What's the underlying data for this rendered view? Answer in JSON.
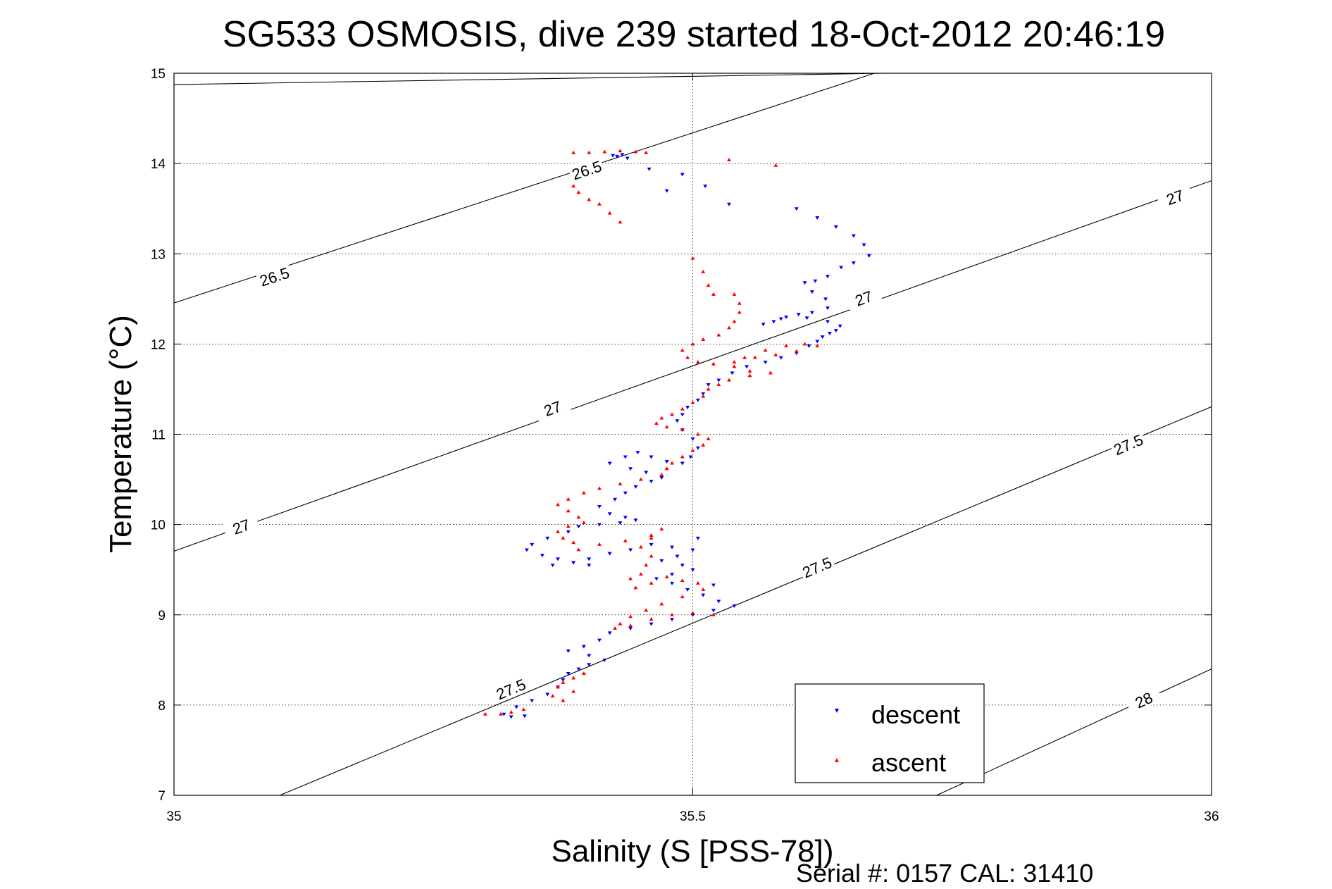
{
  "chart_data": {
    "type": "scatter",
    "title": "SG533 OSMOSIS, dive 239 started 18-Oct-2012 20:46:19",
    "xlabel": "Salinity (S [PSS-78])",
    "ylabel": "Temperature (°C)",
    "footer": "Serial #: 0157  CAL: 31410",
    "xlim": [
      35,
      36
    ],
    "ylim": [
      7,
      15
    ],
    "xticks": [
      "35",
      "35.5",
      "36"
    ],
    "xtick_values": [
      35,
      35.5,
      36
    ],
    "yticks": [
      "7",
      "8",
      "9",
      "10",
      "11",
      "12",
      "13",
      "14",
      "15"
    ],
    "ytick_values": [
      7,
      8,
      9,
      10,
      11,
      12,
      13,
      14,
      15
    ],
    "grid": true,
    "legend_position": "bottom-right",
    "contours": [
      {
        "label": "26.5",
        "line": [
          [
            35.0,
            14.875
          ],
          [
            35.684,
            15.0
          ]
        ],
        "label_positions": []
      },
      {
        "label": "26.5",
        "line": [
          [
            35.0,
            12.455
          ],
          [
            35.675,
            15.0
          ]
        ],
        "label_positions": [
          [
            35.097,
            12.74
          ],
          [
            35.398,
            13.92
          ]
        ]
      },
      {
        "label": "27",
        "line": [
          [
            35.0,
            9.705
          ],
          [
            36.0,
            13.81
          ]
        ],
        "label_positions": [
          [
            35.065,
            9.97
          ],
          [
            35.365,
            11.28
          ],
          [
            35.665,
            12.5
          ],
          [
            35.965,
            13.62
          ]
        ]
      },
      {
        "label": "27.5",
        "line": [
          [
            35.102,
            7.0
          ],
          [
            36.0,
            11.305
          ]
        ],
        "label_positions": [
          [
            35.325,
            8.17
          ],
          [
            35.62,
            9.52
          ],
          [
            35.92,
            10.88
          ]
        ]
      },
      {
        "label": "28",
        "line": [
          [
            35.735,
            7.0
          ],
          [
            36.0,
            8.4
          ]
        ],
        "label_positions": [
          [
            35.935,
            8.05
          ]
        ]
      }
    ],
    "series": [
      {
        "name": "descent",
        "color": "#0000ff",
        "marker": "triangle-down",
        "points": [
          [
            35.423,
            14.09
          ],
          [
            35.427,
            14.08
          ],
          [
            35.432,
            14.1
          ],
          [
            35.437,
            14.06
          ],
          [
            35.458,
            13.94
          ],
          [
            35.49,
            13.88
          ],
          [
            35.512,
            13.75
          ],
          [
            35.475,
            13.7
          ],
          [
            35.535,
            13.55
          ],
          [
            35.6,
            13.5
          ],
          [
            35.62,
            13.4
          ],
          [
            35.638,
            13.3
          ],
          [
            35.655,
            13.2
          ],
          [
            35.665,
            13.1
          ],
          [
            35.67,
            12.98
          ],
          [
            35.655,
            12.9
          ],
          [
            35.643,
            12.85
          ],
          [
            35.63,
            12.75
          ],
          [
            35.618,
            12.7
          ],
          [
            35.608,
            12.68
          ],
          [
            35.615,
            12.58
          ],
          [
            35.628,
            12.5
          ],
          [
            35.63,
            12.4
          ],
          [
            35.615,
            12.35
          ],
          [
            35.602,
            12.33
          ],
          [
            35.59,
            12.3
          ],
          [
            35.578,
            12.25
          ],
          [
            35.568,
            12.22
          ],
          [
            35.585,
            12.28
          ],
          [
            35.61,
            12.29
          ],
          [
            35.63,
            12.25
          ],
          [
            35.642,
            12.2
          ],
          [
            35.638,
            12.15
          ],
          [
            35.632,
            12.12
          ],
          [
            35.625,
            12.08
          ],
          [
            35.62,
            12.03
          ],
          [
            35.612,
            11.98
          ],
          [
            35.6,
            11.9
          ],
          [
            35.585,
            11.85
          ],
          [
            35.57,
            11.8
          ],
          [
            35.552,
            11.75
          ],
          [
            35.538,
            11.68
          ],
          [
            35.525,
            11.6
          ],
          [
            35.515,
            11.55
          ],
          [
            35.51,
            11.45
          ],
          [
            35.505,
            11.38
          ],
          [
            35.495,
            11.3
          ],
          [
            35.49,
            11.22
          ],
          [
            35.485,
            11.15
          ],
          [
            35.49,
            11.05
          ],
          [
            35.5,
            10.95
          ],
          [
            35.505,
            10.85
          ],
          [
            35.498,
            10.75
          ],
          [
            35.49,
            10.68
          ],
          [
            35.475,
            10.7
          ],
          [
            35.46,
            10.75
          ],
          [
            35.447,
            10.8
          ],
          [
            35.435,
            10.75
          ],
          [
            35.42,
            10.68
          ],
          [
            35.44,
            10.62
          ],
          [
            35.455,
            10.58
          ],
          [
            35.47,
            10.52
          ],
          [
            35.46,
            10.48
          ],
          [
            35.445,
            10.42
          ],
          [
            35.435,
            10.35
          ],
          [
            35.425,
            10.28
          ],
          [
            35.41,
            10.2
          ],
          [
            35.42,
            10.12
          ],
          [
            35.435,
            10.08
          ],
          [
            35.445,
            10.05
          ],
          [
            35.43,
            10.02
          ],
          [
            35.41,
            10.0
          ],
          [
            35.39,
            9.98
          ],
          [
            35.38,
            9.92
          ],
          [
            35.36,
            9.85
          ],
          [
            35.345,
            9.78
          ],
          [
            35.34,
            9.72
          ],
          [
            35.355,
            9.66
          ],
          [
            35.37,
            9.62
          ],
          [
            35.385,
            9.58
          ],
          [
            35.4,
            9.55
          ],
          [
            35.385,
            9.58
          ],
          [
            35.365,
            9.55
          ],
          [
            35.4,
            9.62
          ],
          [
            35.42,
            9.68
          ],
          [
            35.44,
            9.72
          ],
          [
            35.46,
            9.78
          ],
          [
            35.48,
            9.75
          ],
          [
            35.5,
            9.72
          ],
          [
            35.485,
            9.65
          ],
          [
            35.47,
            9.6
          ],
          [
            35.49,
            9.55
          ],
          [
            35.5,
            9.5
          ],
          [
            35.48,
            9.45
          ],
          [
            35.465,
            9.4
          ],
          [
            35.48,
            9.35
          ],
          [
            35.495,
            9.28
          ],
          [
            35.51,
            9.22
          ],
          [
            35.525,
            9.15
          ],
          [
            35.54,
            9.1
          ],
          [
            35.52,
            9.05
          ],
          [
            35.5,
            9.0
          ],
          [
            35.48,
            8.95
          ],
          [
            35.46,
            8.9
          ],
          [
            35.44,
            8.85
          ],
          [
            35.42,
            8.8
          ],
          [
            35.41,
            8.72
          ],
          [
            35.395,
            8.65
          ],
          [
            35.38,
            8.6
          ],
          [
            35.4,
            8.55
          ],
          [
            35.415,
            8.5
          ],
          [
            35.4,
            8.45
          ],
          [
            35.39,
            8.4
          ],
          [
            35.38,
            8.35
          ],
          [
            35.375,
            8.28
          ],
          [
            35.37,
            8.2
          ],
          [
            35.36,
            8.12
          ],
          [
            35.345,
            8.05
          ],
          [
            35.33,
            7.98
          ],
          [
            35.318,
            7.9
          ],
          [
            35.325,
            7.87
          ],
          [
            35.338,
            7.88
          ],
          [
            35.52,
            9.33
          ],
          [
            35.505,
            9.85
          ]
        ]
      },
      {
        "name": "ascent",
        "color": "#ff0000",
        "marker": "triangle-up",
        "points": [
          [
            35.385,
            14.12
          ],
          [
            35.4,
            14.12
          ],
          [
            35.415,
            14.13
          ],
          [
            35.43,
            14.14
          ],
          [
            35.445,
            14.13
          ],
          [
            35.455,
            14.12
          ],
          [
            35.39,
            13.95
          ],
          [
            35.392,
            13.9
          ],
          [
            35.385,
            13.75
          ],
          [
            35.39,
            13.68
          ],
          [
            35.4,
            13.6
          ],
          [
            35.41,
            13.55
          ],
          [
            35.42,
            13.45
          ],
          [
            35.43,
            13.35
          ],
          [
            35.535,
            14.04
          ],
          [
            35.58,
            13.98
          ],
          [
            35.5,
            12.95
          ],
          [
            35.51,
            12.8
          ],
          [
            35.515,
            12.65
          ],
          [
            35.52,
            12.55
          ],
          [
            35.54,
            12.55
          ],
          [
            35.545,
            12.45
          ],
          [
            35.545,
            12.35
          ],
          [
            35.54,
            12.25
          ],
          [
            35.535,
            12.18
          ],
          [
            35.525,
            12.1
          ],
          [
            35.51,
            12.05
          ],
          [
            35.5,
            12.0
          ],
          [
            35.49,
            11.93
          ],
          [
            35.495,
            11.85
          ],
          [
            35.505,
            11.8
          ],
          [
            35.52,
            11.78
          ],
          [
            35.54,
            11.8
          ],
          [
            35.56,
            11.85
          ],
          [
            35.58,
            11.88
          ],
          [
            35.6,
            11.92
          ],
          [
            35.62,
            11.98
          ],
          [
            35.608,
            12.0
          ],
          [
            35.59,
            11.98
          ],
          [
            35.57,
            11.93
          ],
          [
            35.55,
            11.85
          ],
          [
            35.54,
            11.75
          ],
          [
            35.555,
            11.7
          ],
          [
            35.575,
            11.68
          ],
          [
            35.555,
            11.65
          ],
          [
            35.535,
            11.6
          ],
          [
            35.525,
            11.55
          ],
          [
            35.515,
            11.5
          ],
          [
            35.51,
            11.42
          ],
          [
            35.5,
            11.35
          ],
          [
            35.49,
            11.28
          ],
          [
            35.48,
            11.22
          ],
          [
            35.47,
            11.18
          ],
          [
            35.465,
            11.12
          ],
          [
            35.475,
            11.08
          ],
          [
            35.49,
            11.05
          ],
          [
            35.505,
            11.0
          ],
          [
            35.515,
            10.95
          ],
          [
            35.51,
            10.88
          ],
          [
            35.5,
            10.82
          ],
          [
            35.49,
            10.75
          ],
          [
            35.48,
            10.68
          ],
          [
            35.475,
            10.62
          ],
          [
            35.47,
            10.55
          ],
          [
            35.45,
            10.5
          ],
          [
            35.43,
            10.45
          ],
          [
            35.41,
            10.4
          ],
          [
            35.395,
            10.35
          ],
          [
            35.38,
            10.28
          ],
          [
            35.37,
            10.22
          ],
          [
            35.38,
            10.15
          ],
          [
            35.39,
            10.08
          ],
          [
            35.395,
            10.02
          ],
          [
            35.38,
            9.98
          ],
          [
            35.37,
            9.92
          ],
          [
            35.375,
            9.85
          ],
          [
            35.385,
            9.8
          ],
          [
            35.39,
            9.72
          ],
          [
            35.41,
            9.78
          ],
          [
            35.435,
            9.82
          ],
          [
            35.46,
            9.88
          ],
          [
            35.47,
            9.95
          ],
          [
            35.46,
            9.85
          ],
          [
            35.45,
            9.75
          ],
          [
            35.46,
            9.65
          ],
          [
            35.455,
            9.55
          ],
          [
            35.45,
            9.45
          ],
          [
            35.44,
            9.4
          ],
          [
            35.445,
            9.3
          ],
          [
            35.46,
            9.35
          ],
          [
            35.475,
            9.42
          ],
          [
            35.49,
            9.38
          ],
          [
            35.505,
            9.35
          ],
          [
            35.51,
            9.28
          ],
          [
            35.49,
            9.2
          ],
          [
            35.47,
            9.12
          ],
          [
            35.455,
            9.05
          ],
          [
            35.44,
            8.98
          ],
          [
            35.43,
            8.9
          ],
          [
            35.425,
            8.85
          ],
          [
            35.44,
            8.88
          ],
          [
            35.46,
            8.95
          ],
          [
            35.48,
            9.0
          ],
          [
            35.5,
            9.02
          ],
          [
            35.52,
            9.0
          ],
          [
            35.395,
            8.35
          ],
          [
            35.385,
            8.3
          ],
          [
            35.375,
            8.25
          ],
          [
            35.37,
            8.2
          ],
          [
            35.385,
            8.15
          ],
          [
            35.375,
            8.05
          ],
          [
            35.365,
            8.1
          ],
          [
            35.325,
            7.92
          ],
          [
            35.315,
            7.9
          ],
          [
            35.3,
            7.9
          ],
          [
            35.337,
            7.95
          ]
        ]
      }
    ]
  }
}
